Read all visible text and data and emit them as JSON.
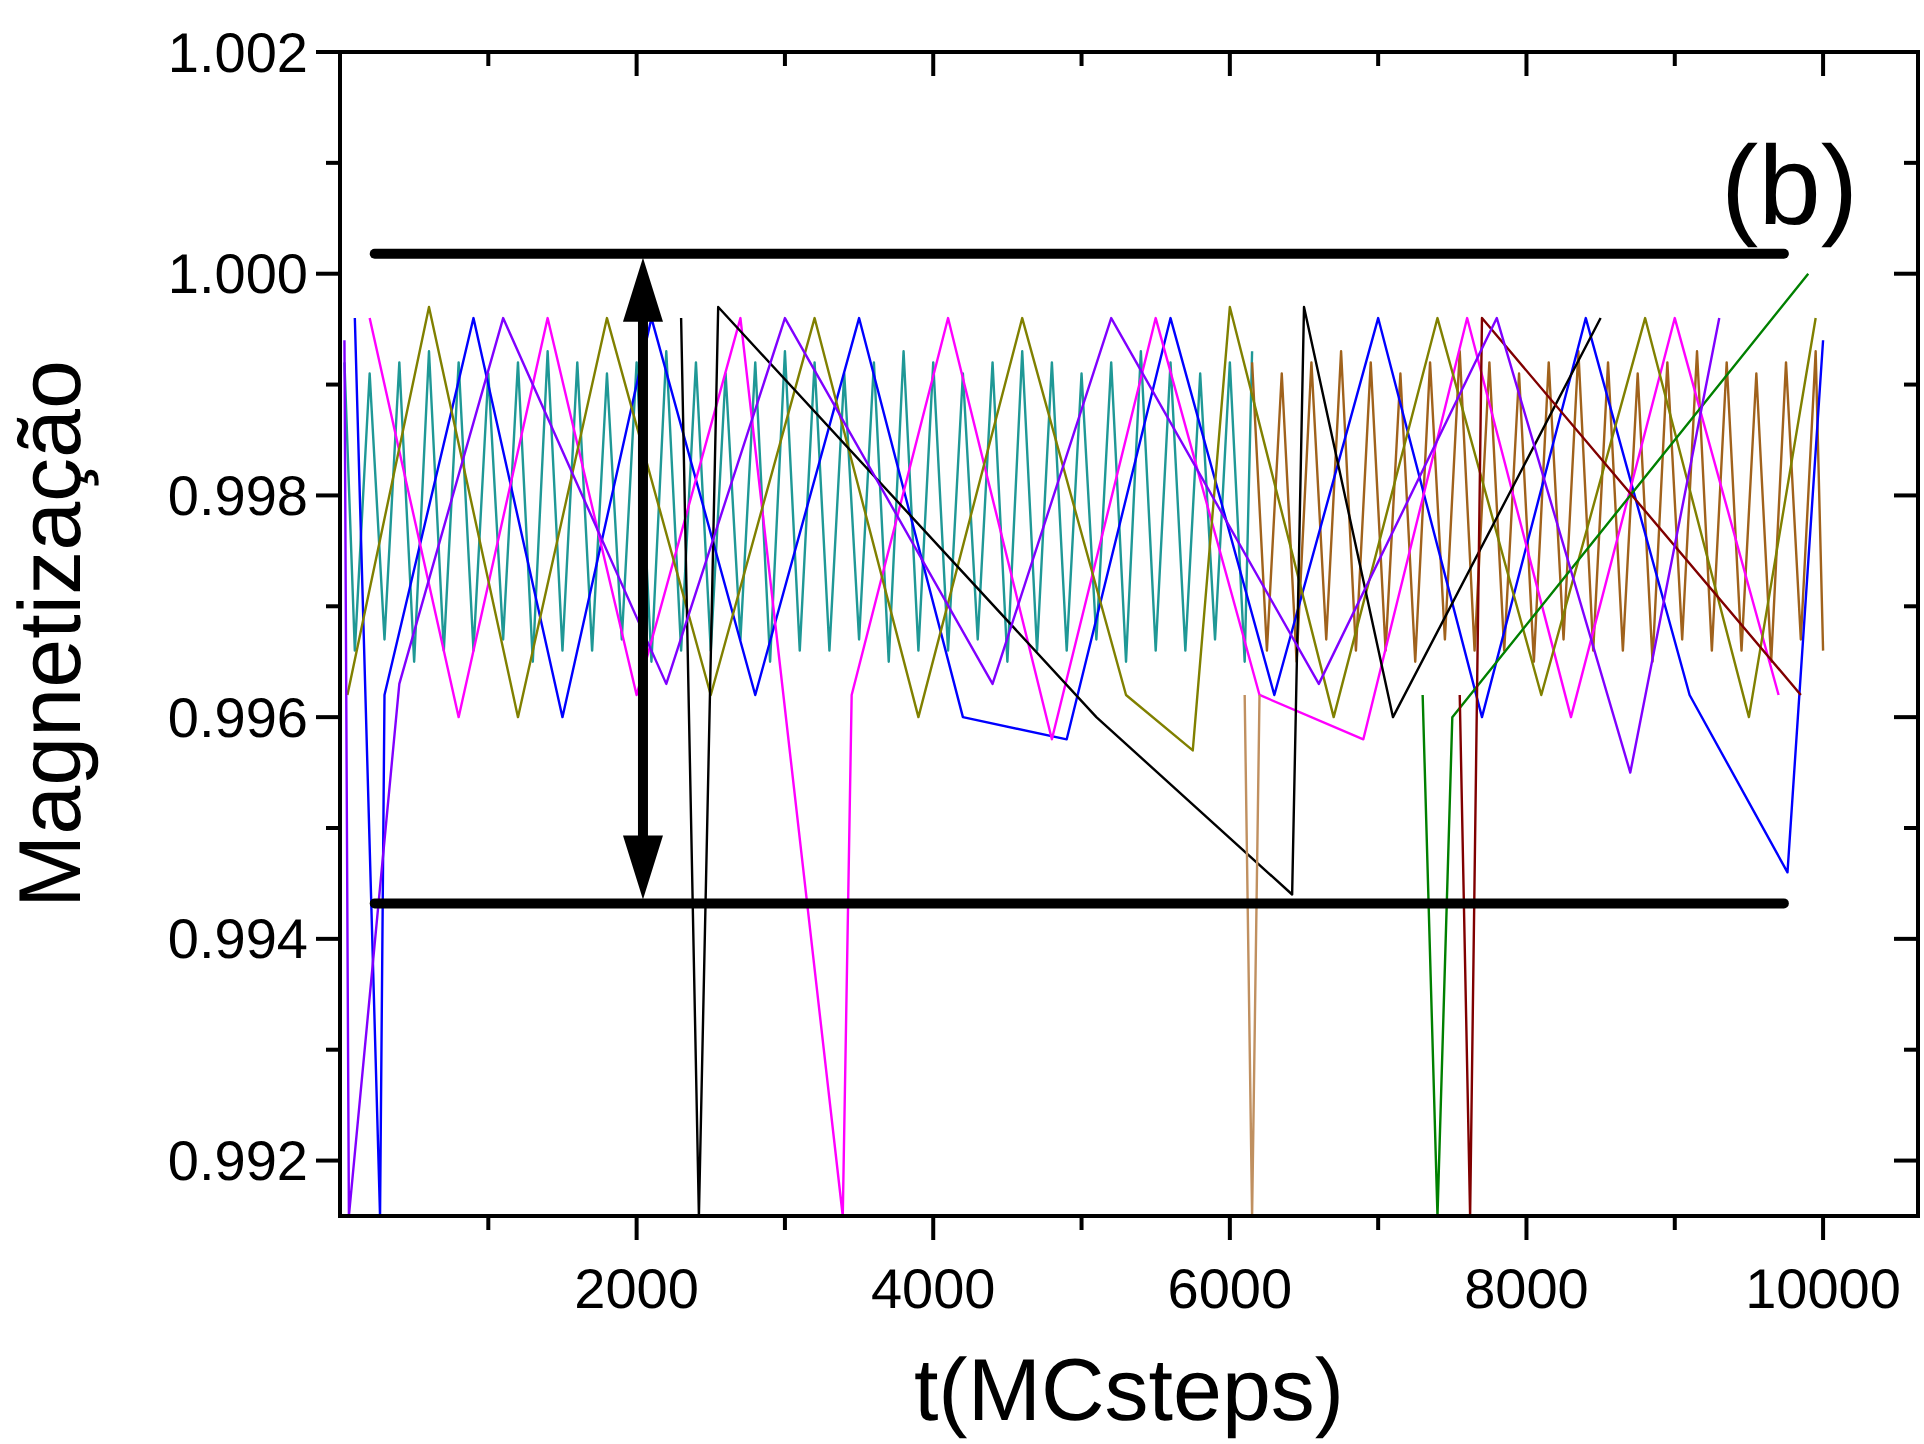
{
  "chart_data": {
    "type": "line",
    "xlabel": "t(MCsteps)",
    "ylabel": "Magnetização",
    "annotations": [
      "(b)"
    ],
    "xlim": [
      0,
      10640
    ],
    "ylim": [
      0.9915,
      1.002
    ],
    "xticks": [
      {
        "value": 1000,
        "label": null
      },
      2000,
      {
        "value": 3000,
        "label": null
      },
      4000,
      {
        "value": 5000,
        "label": null
      },
      6000,
      {
        "value": 7000,
        "label": null
      },
      8000,
      {
        "value": 9000,
        "label": null
      },
      10000
    ],
    "yticks": [
      0.992,
      {
        "value": 0.993,
        "label": null
      },
      0.994,
      {
        "value": 0.995,
        "label": null
      },
      0.996,
      {
        "value": 0.997,
        "label": null
      },
      0.998,
      {
        "value": 0.999,
        "label": null
      },
      {
        "value": 1,
        "label": "1.000"
      },
      {
        "value": 1.001,
        "label": null
      },
      1.002
    ],
    "grid": false,
    "marker": "none",
    "line_style": "solid",
    "ref_lines": [
      {
        "axis": "y",
        "value": 1.00018,
        "color": "#000000"
      },
      {
        "axis": "y",
        "value": 0.99432,
        "color": "#000000"
      }
    ],
    "series": [
      {
        "color": "#1f9896",
        "x": [
          30,
          100,
          200,
          300,
          400,
          500,
          600,
          700,
          800,
          900,
          1000,
          1100,
          1200,
          1300,
          1400,
          1500,
          1600,
          1700,
          1800,
          1900,
          2000,
          2100,
          2200,
          2300,
          2400,
          2500,
          2600,
          2700,
          2800,
          2900,
          3000,
          3100,
          3200,
          3300,
          3400,
          3500,
          3600,
          3700,
          3800,
          3900,
          4000,
          4100,
          4200,
          4300,
          4400,
          4500,
          4600,
          4700,
          4800,
          4900,
          5000,
          5100,
          5200,
          5300,
          5400,
          5500,
          5600,
          5700,
          5800,
          5900,
          6000,
          6100,
          6150
        ],
        "values": [
          0.9992,
          0.9966,
          0.9991,
          0.9967,
          0.9992,
          0.9965,
          0.9993,
          0.9966,
          0.9992,
          0.9966,
          0.9991,
          0.9967,
          0.9992,
          0.9965,
          0.9993,
          0.9966,
          0.9992,
          0.9966,
          0.9991,
          0.9967,
          0.9992,
          0.9965,
          0.9993,
          0.9966,
          0.9992,
          0.9966,
          0.9991,
          0.9967,
          0.9992,
          0.9965,
          0.9993,
          0.9966,
          0.9992,
          0.9966,
          0.9991,
          0.9967,
          0.9992,
          0.9965,
          0.9993,
          0.9966,
          0.9992,
          0.9966,
          0.9991,
          0.9967,
          0.9992,
          0.9965,
          0.9993,
          0.9966,
          0.9992,
          0.9966,
          0.9991,
          0.9967,
          0.9992,
          0.9965,
          0.9993,
          0.9966,
          0.9992,
          0.9966,
          0.9991,
          0.9967,
          0.9992,
          0.9965,
          0.9993
        ]
      },
      {
        "color": "#a0621c",
        "x": [
          6150,
          6250,
          6350,
          6450,
          6550,
          6650,
          6750,
          6850,
          6950,
          7050,
          7150,
          7250,
          7350,
          7450,
          7550,
          7650,
          7750,
          7850,
          7950,
          8050,
          8150,
          8250,
          8350,
          8450,
          8550,
          8650,
          8750,
          8850,
          8950,
          9050,
          9150,
          9250,
          9350,
          9450,
          9550,
          9650,
          9750,
          9850,
          9950,
          10000
        ],
        "values": [
          0.9992,
          0.9966,
          0.9991,
          0.9965,
          0.9992,
          0.9967,
          0.9993,
          0.9966,
          0.9992,
          0.9966,
          0.9991,
          0.9965,
          0.9992,
          0.9967,
          0.9993,
          0.9966,
          0.9992,
          0.9966,
          0.9991,
          0.9965,
          0.9992,
          0.9967,
          0.9993,
          0.9966,
          0.9992,
          0.9966,
          0.9991,
          0.9965,
          0.9992,
          0.9967,
          0.9993,
          0.9966,
          0.9992,
          0.9966,
          0.9991,
          0.9965,
          0.9992,
          0.9967,
          0.9993,
          0.9966
        ]
      },
      {
        "color": "#0000ff",
        "x": [
          100,
          270,
          300,
          900,
          1500,
          2100,
          2800,
          3500,
          4200,
          4900,
          5600,
          6300,
          7000,
          7700,
          8400,
          9100,
          9760,
          10000
        ],
        "values": [
          0.9996,
          0.9915,
          0.9962,
          0.9996,
          0.996,
          0.9996,
          0.9962,
          0.9996,
          0.996,
          0.9958,
          0.9996,
          0.9962,
          0.9996,
          0.996,
          0.9996,
          0.9962,
          0.9946,
          0.9994
        ]
      },
      {
        "color": "#ff00ff",
        "x": [
          200,
          800,
          1400,
          2000,
          2700,
          3390,
          3450,
          4100,
          4800,
          5500,
          6200,
          6900,
          7600,
          8300,
          9000,
          9700
        ],
        "values": [
          0.9996,
          0.996,
          0.9996,
          0.9962,
          0.9996,
          0.9915,
          0.9962,
          0.9996,
          0.9958,
          0.9996,
          0.9962,
          0.9958,
          0.9996,
          0.996,
          0.9996,
          0.9962
        ]
      },
      {
        "color": "#808000",
        "x": [
          50,
          600,
          1200,
          1800,
          2500,
          3200,
          3900,
          4600,
          5300,
          5750,
          6000,
          6700,
          7400,
          8100,
          8800,
          9500,
          9950
        ],
        "values": [
          0.9962,
          0.9997,
          0.996,
          0.9996,
          0.9962,
          0.9996,
          0.996,
          0.9996,
          0.9962,
          0.9957,
          0.9997,
          0.996,
          0.9996,
          0.9962,
          0.9996,
          0.996,
          0.9996
        ]
      },
      {
        "color": "#000000",
        "x": [
          2300,
          2420,
          2550,
          5100,
          6420,
          6500,
          7100,
          8500
        ],
        "values": [
          0.9996,
          0.9915,
          0.9997,
          0.996,
          0.9944,
          0.9997,
          0.996,
          0.9996
        ]
      },
      {
        "color": "#008000",
        "x": [
          7300,
          7400,
          7500,
          9900
        ],
        "values": [
          0.9962,
          0.9915,
          0.996,
          1.0
        ]
      },
      {
        "color": "#800000",
        "x": [
          7550,
          7620,
          7700,
          9850
        ],
        "values": [
          0.9962,
          0.9915,
          0.9996,
          0.9962
        ]
      },
      {
        "color": "#c09060",
        "x": [
          6100,
          6150,
          6200
        ],
        "values": [
          0.9962,
          0.9915,
          0.9962
        ]
      },
      {
        "color": "#8000ff",
        "x": [
          30,
          60,
          400,
          1100,
          2200,
          3000,
          4400,
          5200,
          6600,
          7800,
          8700,
          9300
        ],
        "values": [
          0.9994,
          0.9915,
          0.9963,
          0.9996,
          0.9963,
          0.9996,
          0.9963,
          0.9996,
          0.9963,
          0.9996,
          0.9955,
          0.9996
        ]
      }
    ]
  }
}
